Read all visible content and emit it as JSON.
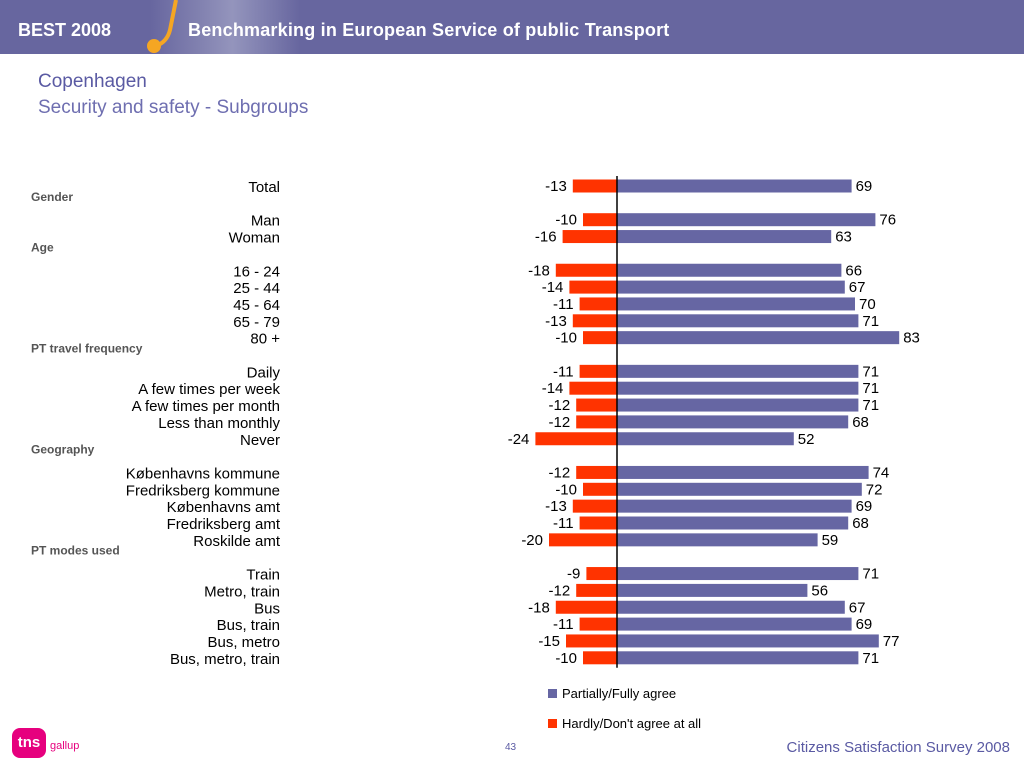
{
  "header": {
    "brand": "BEST 2008",
    "title": "Benchmarking in European Service of public Transport",
    "background_color": "#67669f"
  },
  "page": {
    "title": "Copenhagen",
    "subtitle": "Security and safety - Subgroups"
  },
  "chart_data": {
    "type": "bar",
    "orientation": "horizontal",
    "title": "",
    "xlabel": "",
    "ylabel": "",
    "grid": false,
    "legend_position": "bottom",
    "rows": [
      {
        "kind": "item",
        "label": "Total",
        "agree": 69,
        "disagree": -13
      },
      {
        "kind": "group",
        "label": "Gender"
      },
      {
        "kind": "item",
        "label": "Man",
        "agree": 76,
        "disagree": -10
      },
      {
        "kind": "item",
        "label": "Woman",
        "agree": 63,
        "disagree": -16
      },
      {
        "kind": "group",
        "label": "Age"
      },
      {
        "kind": "item",
        "label": "16 - 24",
        "agree": 66,
        "disagree": -18
      },
      {
        "kind": "item",
        "label": "25 - 44",
        "agree": 67,
        "disagree": -14
      },
      {
        "kind": "item",
        "label": "45 - 64",
        "agree": 70,
        "disagree": -11
      },
      {
        "kind": "item",
        "label": "65 - 79",
        "agree": 71,
        "disagree": -13
      },
      {
        "kind": "item",
        "label": "80 +",
        "agree": 83,
        "disagree": -10
      },
      {
        "kind": "group",
        "label": "PT travel frequency"
      },
      {
        "kind": "item",
        "label": "Daily",
        "agree": 71,
        "disagree": -11
      },
      {
        "kind": "item",
        "label": "A few times per week",
        "agree": 71,
        "disagree": -14
      },
      {
        "kind": "item",
        "label": "A few times per month",
        "agree": 71,
        "disagree": -12
      },
      {
        "kind": "item",
        "label": "Less than monthly",
        "agree": 68,
        "disagree": -12
      },
      {
        "kind": "item",
        "label": "Never",
        "agree": 52,
        "disagree": -24
      },
      {
        "kind": "group",
        "label": "Geography"
      },
      {
        "kind": "item",
        "label": "Københavns kommune",
        "agree": 74,
        "disagree": -12
      },
      {
        "kind": "item",
        "label": "Fredriksberg kommune",
        "agree": 72,
        "disagree": -10
      },
      {
        "kind": "item",
        "label": "Københavns amt",
        "agree": 69,
        "disagree": -13
      },
      {
        "kind": "item",
        "label": "Fredriksberg amt",
        "agree": 68,
        "disagree": -11
      },
      {
        "kind": "item",
        "label": "Roskilde amt",
        "agree": 59,
        "disagree": -20
      },
      {
        "kind": "group",
        "label": "PT modes used"
      },
      {
        "kind": "item",
        "label": "Train",
        "agree": 71,
        "disagree": -9
      },
      {
        "kind": "item",
        "label": "Metro, train",
        "agree": 56,
        "disagree": -12
      },
      {
        "kind": "item",
        "label": "Bus",
        "agree": 67,
        "disagree": -18
      },
      {
        "kind": "item",
        "label": "Bus, train",
        "agree": 69,
        "disagree": -11
      },
      {
        "kind": "item",
        "label": "Bus, metro",
        "agree": 77,
        "disagree": -15
      },
      {
        "kind": "item",
        "label": "Bus, metro, train",
        "agree": 71,
        "disagree": -10
      }
    ],
    "series": [
      {
        "name": "Partially/Fully agree",
        "color": "#6666a3"
      },
      {
        "name": "Hardly/Don't agree at all",
        "color": "#ff3300"
      }
    ]
  },
  "footer": {
    "logo_text": "tns",
    "logo_sub": "gallup",
    "page_number": "43",
    "survey_name": "Citizens Satisfaction Survey 2008"
  }
}
